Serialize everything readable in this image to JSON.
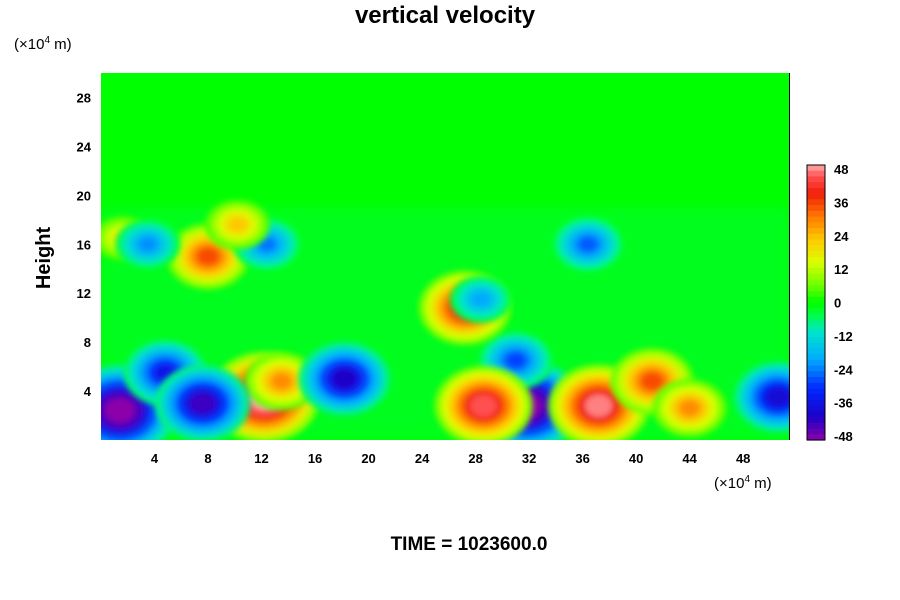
{
  "chart_data": {
    "type": "heatmap",
    "title": "vertical velocity",
    "ylabel": "Height",
    "x_unit_label": "(×10",
    "x_unit_exp": "4",
    "x_unit_tail": " m)",
    "y_unit_label": "(×10",
    "y_unit_exp": "4",
    "y_unit_tail": " m)",
    "xlim": [
      0,
      51.5
    ],
    "ylim": [
      0,
      30
    ],
    "x_ticks": [
      4,
      8,
      12,
      16,
      20,
      24,
      28,
      32,
      36,
      40,
      44,
      48
    ],
    "y_ticks": [
      4,
      8,
      12,
      16,
      20,
      24,
      28
    ],
    "colorbar": {
      "min": -48,
      "max": 48,
      "ticks": [
        48,
        36,
        24,
        12,
        0,
        -12,
        -24,
        -36,
        -48
      ]
    },
    "footer": "TIME = 1023600.0",
    "features": [
      {
        "x": 12.2,
        "y": 3.5,
        "value": 52
      },
      {
        "x": 13.5,
        "y": 4.8,
        "value": 28
      },
      {
        "x": 18.2,
        "y": 5.0,
        "value": -40
      },
      {
        "x": 31.8,
        "y": 2.8,
        "value": -52
      },
      {
        "x": 31.0,
        "y": 6.5,
        "value": -28
      },
      {
        "x": 28.6,
        "y": 2.8,
        "value": 44
      },
      {
        "x": 37.2,
        "y": 2.8,
        "value": 46
      },
      {
        "x": 41.2,
        "y": 4.8,
        "value": 34
      },
      {
        "x": 44.0,
        "y": 2.6,
        "value": 28
      },
      {
        "x": 2.0,
        "y": 2.5,
        "value": -44
      },
      {
        "x": 1.4,
        "y": 2.4,
        "value": -52
      },
      {
        "x": 4.8,
        "y": 5.5,
        "value": -34
      },
      {
        "x": 7.6,
        "y": 3.0,
        "value": -42
      },
      {
        "x": 50.6,
        "y": 3.5,
        "value": -38
      },
      {
        "x": 8.0,
        "y": 15.0,
        "value": 34
      },
      {
        "x": 1.6,
        "y": 16.5,
        "value": 18
      },
      {
        "x": 3.5,
        "y": 16.0,
        "value": -22
      },
      {
        "x": 27.2,
        "y": 10.8,
        "value": 40
      },
      {
        "x": 28.4,
        "y": 11.5,
        "value": -20
      },
      {
        "x": 36.4,
        "y": 16.0,
        "value": -26
      },
      {
        "x": 12.4,
        "y": 16.0,
        "value": -24
      },
      {
        "x": 10.2,
        "y": 17.6,
        "value": 22
      }
    ]
  }
}
